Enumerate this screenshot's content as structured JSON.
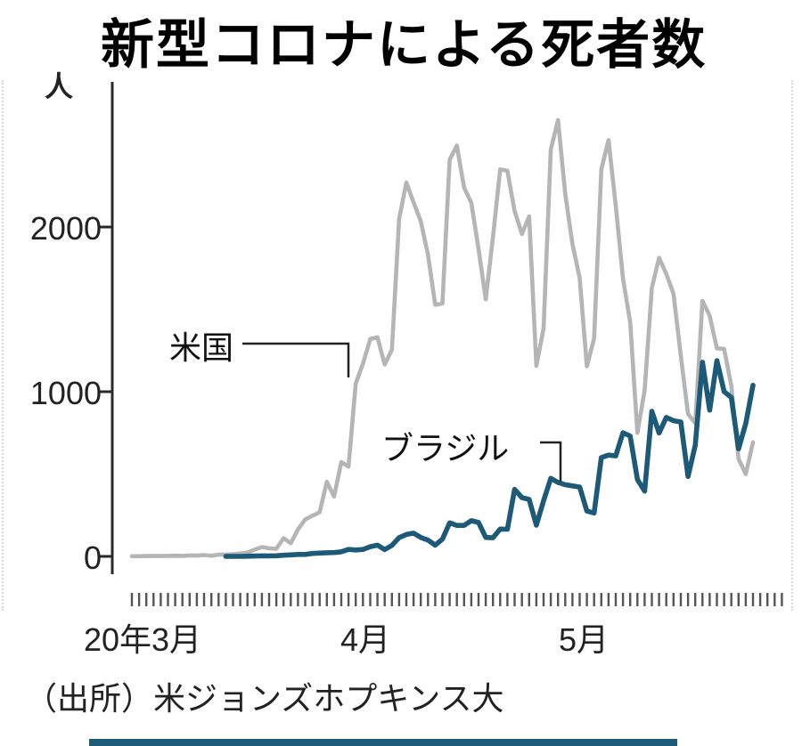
{
  "page": {
    "title": "新型コロナによる死者数",
    "unit_label": "人",
    "source": "（出所）米ジョンズホプキンス大"
  },
  "chart_data": {
    "type": "line",
    "title": "新型コロナによる死者数",
    "xlabel": "",
    "ylabel": "人",
    "ylim": [
      0,
      2800
    ],
    "yticks": [
      0,
      1000,
      2000
    ],
    "xtick_labels": [
      "20年3月",
      "4月",
      "5月"
    ],
    "x_start": "2020-03-01",
    "x_step": "1 day",
    "grid": false,
    "legend_position": "inline-annotations",
    "annotations": [
      {
        "label": "米国",
        "points_to": "us-line near 2020-04-01 ≈ 1100"
      },
      {
        "label": "ブラジル",
        "points_to": "brazil-line near 2020-04-30 ≈ 450"
      }
    ],
    "series": [
      {
        "name": "米国",
        "color": "#b5b5b5",
        "values": [
          1,
          1,
          2,
          3,
          2,
          3,
          4,
          3,
          6,
          5,
          8,
          4,
          10,
          11,
          13,
          18,
          23,
          41,
          57,
          49,
          46,
          111,
          80,
          164,
          225,
          247,
          268,
          453,
          363,
          573,
          545,
          1050,
          1170,
          1320,
          1330,
          1165,
          1255,
          2050,
          2270,
          2150,
          2035,
          1830,
          1528,
          1535,
          2408,
          2494,
          2239,
          2147,
          1867,
          1561,
          1939,
          2350,
          2341,
          2097,
          1958,
          2065,
          1157,
          1384,
          2470,
          2650,
          2201,
          1897,
          1691,
          1154,
          1324,
          2350,
          2528,
          2129,
          1687,
          1422,
          750,
          1008,
          1630,
          1813,
          1715,
          1595,
          1218,
          865,
          808,
          1552,
          1461,
          1263,
          1260,
          1036,
          592,
          500,
          693
        ]
      },
      {
        "name": "ブラジル",
        "color": "#1d5a78",
        "values": [
          null,
          null,
          null,
          null,
          null,
          null,
          null,
          null,
          null,
          null,
          null,
          null,
          null,
          0,
          0,
          0,
          1,
          2,
          3,
          3,
          4,
          7,
          9,
          12,
          12,
          18,
          20,
          22,
          23,
          28,
          42,
          39,
          42,
          59,
          68,
          41,
          67,
          114,
          133,
          141,
          115,
          99,
          68,
          105,
          204,
          188,
          188,
          217,
          206,
          115,
          113,
          166,
          165,
          407,
          357,
          346,
          189,
          338,
          474,
          449,
          435,
          428,
          421,
          275,
          263,
          600,
          615,
          610,
          751,
          730,
          467,
          396,
          881,
          749,
          844,
          824,
          816,
          485,
          674,
          1179,
          888,
          1188,
          1001,
          965,
          653,
          807,
          1039
        ]
      }
    ]
  },
  "style": {
    "accent_bar_color": "#1d5b79",
    "axis_color": "#2b2b2b",
    "tick_color": "#555555"
  }
}
